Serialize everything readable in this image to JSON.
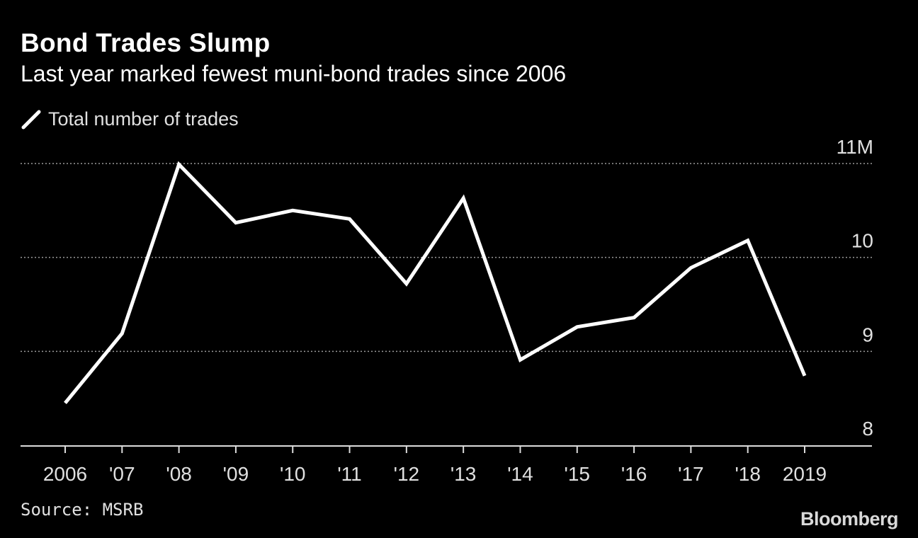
{
  "header": {
    "title": "Bond Trades Slump",
    "subtitle": "Last year marked fewest muni-bond trades since 2006"
  },
  "footer": {
    "source": "Source: MSRB",
    "brand": "Bloomberg"
  },
  "colors": {
    "background": "#000000",
    "line": "#ffffff",
    "grid": "#9a9a9a",
    "text": "#e0e0e0"
  },
  "chart_data": {
    "type": "line",
    "x": [
      2006,
      2007,
      2008,
      2009,
      2010,
      2011,
      2012,
      2013,
      2014,
      2015,
      2016,
      2017,
      2018,
      2019
    ],
    "x_tick_labels": [
      "2006",
      "'07",
      "'08",
      "'09",
      "'10",
      "'11",
      "'12",
      "'13",
      "'14",
      "'15",
      "'16",
      "'17",
      "'18",
      "2019"
    ],
    "series": [
      {
        "name": "Total number of trades",
        "values": [
          8.45,
          9.19,
          10.99,
          10.37,
          10.5,
          10.41,
          9.72,
          10.63,
          8.91,
          9.26,
          9.36,
          9.89,
          10.18,
          8.74
        ]
      }
    ],
    "ylim": [
      8,
      11
    ],
    "y_ticks": [
      8,
      9,
      10,
      11
    ],
    "y_tick_labels": [
      "8",
      "9",
      "10",
      "11M"
    ],
    "y_axis_side": "right",
    "grid": "horizontal dotted",
    "legend_position": "top-left",
    "xlabel": "",
    "ylabel": ""
  }
}
